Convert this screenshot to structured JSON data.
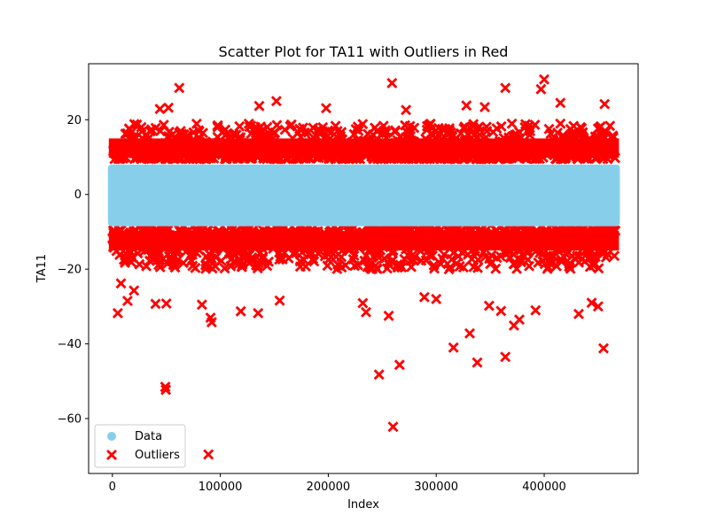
{
  "chart_data": {
    "type": "scatter",
    "title": "Scatter Plot for TA11 with Outliers in Red",
    "xlabel": "Index",
    "ylabel": "TA11",
    "xlim": [
      -22000,
      487000
    ],
    "ylim": [
      -74.7,
      35.0
    ],
    "xticks": [
      0,
      100000,
      200000,
      300000,
      400000
    ],
    "yticks": [
      -60,
      -40,
      -20,
      0,
      20
    ],
    "legend": {
      "position": "bottom-left",
      "entries": [
        "Data",
        "Outliers"
      ]
    },
    "series": [
      {
        "name": "Data",
        "color": "#87ceeb",
        "marker": "circle",
        "x_range": [
          0,
          466000
        ],
        "y_range": [
          -8.5,
          8.0
        ],
        "note_dense_band": true
      },
      {
        "name": "Outliers",
        "color": "#ff0000",
        "marker": "x",
        "bands": [
          {
            "x_range": [
              0,
              466000
            ],
            "y_range": [
              9.5,
              19.0
            ]
          },
          {
            "x_range": [
              0,
              466000
            ],
            "y_range": [
              -20.0,
              -9.5
            ]
          }
        ],
        "points": [
          [
            62000,
            28.5
          ],
          [
            259000,
            29.8
          ],
          [
            400000,
            30.8
          ],
          [
            397000,
            28.2
          ],
          [
            364000,
            28.5
          ],
          [
            152000,
            25.0
          ],
          [
            328000,
            23.8
          ],
          [
            345000,
            23.4
          ],
          [
            415000,
            24.5
          ],
          [
            456000,
            24.2
          ],
          [
            52000,
            23.2
          ],
          [
            44000,
            22.9
          ],
          [
            136000,
            23.7
          ],
          [
            272000,
            22.6
          ],
          [
            198000,
            23.1
          ],
          [
            8000,
            -23.8
          ],
          [
            14000,
            -28.5
          ],
          [
            20000,
            -25.7
          ],
          [
            5000,
            -31.8
          ],
          [
            40000,
            -29.3
          ],
          [
            50000,
            -29.2
          ],
          [
            83000,
            -29.5
          ],
          [
            91000,
            -33.0
          ],
          [
            92000,
            -34.2
          ],
          [
            119000,
            -31.3
          ],
          [
            135000,
            -31.8
          ],
          [
            155000,
            -28.4
          ],
          [
            232000,
            -29.1
          ],
          [
            235000,
            -31.5
          ],
          [
            256000,
            -32.5
          ],
          [
            289000,
            -27.5
          ],
          [
            300000,
            -28.0
          ],
          [
            349000,
            -29.8
          ],
          [
            360000,
            -31.2
          ],
          [
            372000,
            -35.1
          ],
          [
            377000,
            -33.5
          ],
          [
            392000,
            -31.0
          ],
          [
            432000,
            -32.0
          ],
          [
            450000,
            -30.0
          ],
          [
            444000,
            -29.0
          ],
          [
            316000,
            -41.0
          ],
          [
            331000,
            -37.2
          ],
          [
            338000,
            -45.0
          ],
          [
            364000,
            -43.5
          ],
          [
            455000,
            -41.2
          ],
          [
            247000,
            -48.2
          ],
          [
            266000,
            -45.6
          ],
          [
            49000,
            -51.5
          ],
          [
            49500,
            -52.3
          ],
          [
            260000,
            -62.2
          ],
          [
            89000,
            -69.6
          ]
        ]
      }
    ]
  }
}
